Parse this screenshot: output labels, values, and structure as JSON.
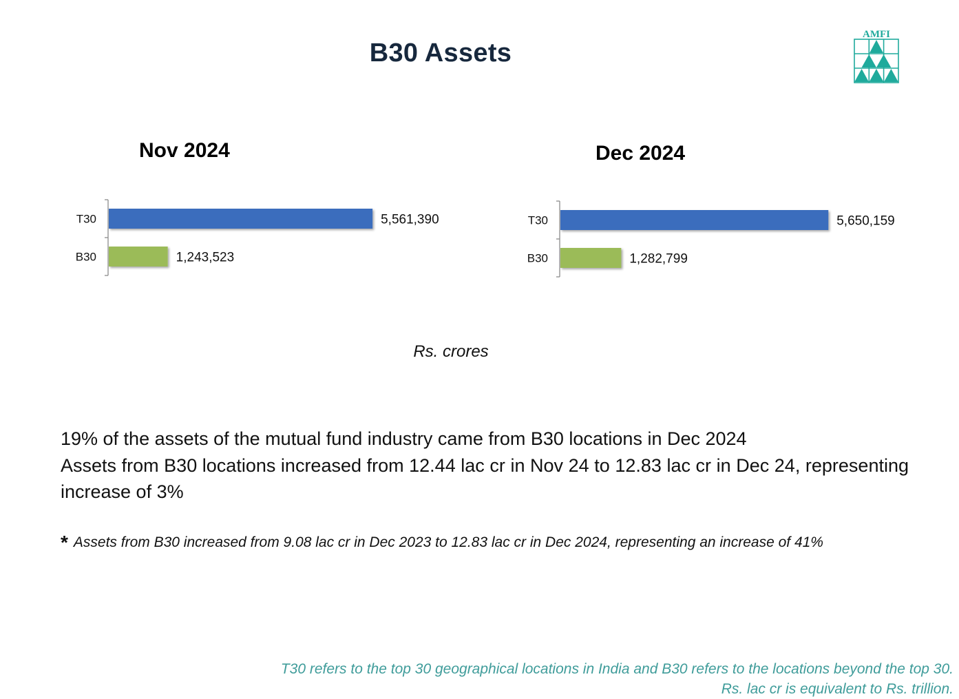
{
  "slide": {
    "title": "B30 Assets",
    "logo_text": "AMFI",
    "units_note": "Rs. crores",
    "summary": {
      "line1": "19% of the assets of the mutual fund industry came from B30 locations in  Dec 2024",
      "line2": "Assets from B30 locations increased from 12.44 lac cr in  Nov 24 to 12.83 lac cr in Dec 24, representing increase of 3%"
    },
    "footnote": {
      "marker": "*",
      "text": "Assets from B30 increased from 9.08 lac cr in Dec  2023 to 12.83 lac cr in Dec 2024, representing an increase of  41%"
    },
    "definitions": {
      "line1": "T30 refers to the top 30 geographical locations in India and B30 refers to the locations beyond the top 30.",
      "line2": "Rs. lac cr is equivalent to Rs. trillion."
    }
  },
  "colors": {
    "title": "#17283d",
    "t30_bar": "#3b6dbd",
    "b30_bar": "#9bbb59",
    "logo": "#1faa9c",
    "definitions_text": "#3f9c9a"
  },
  "chart_data": [
    {
      "type": "bar",
      "orientation": "horizontal",
      "title": "Nov 2024",
      "categories": [
        "T30",
        "B30"
      ],
      "values": [
        5561390,
        1243523
      ],
      "value_labels": [
        "5,561,390",
        "1,243,523"
      ],
      "xlim": [
        0,
        9000000
      ],
      "grid": false,
      "legend": "none"
    },
    {
      "type": "bar",
      "orientation": "horizontal",
      "title": "Dec 2024",
      "categories": [
        "T30",
        "B30"
      ],
      "values": [
        5650159,
        1282799
      ],
      "value_labels": [
        "5,650,159",
        "1,282,799"
      ],
      "xlim": [
        0,
        9000000
      ],
      "grid": false,
      "legend": "none"
    }
  ]
}
